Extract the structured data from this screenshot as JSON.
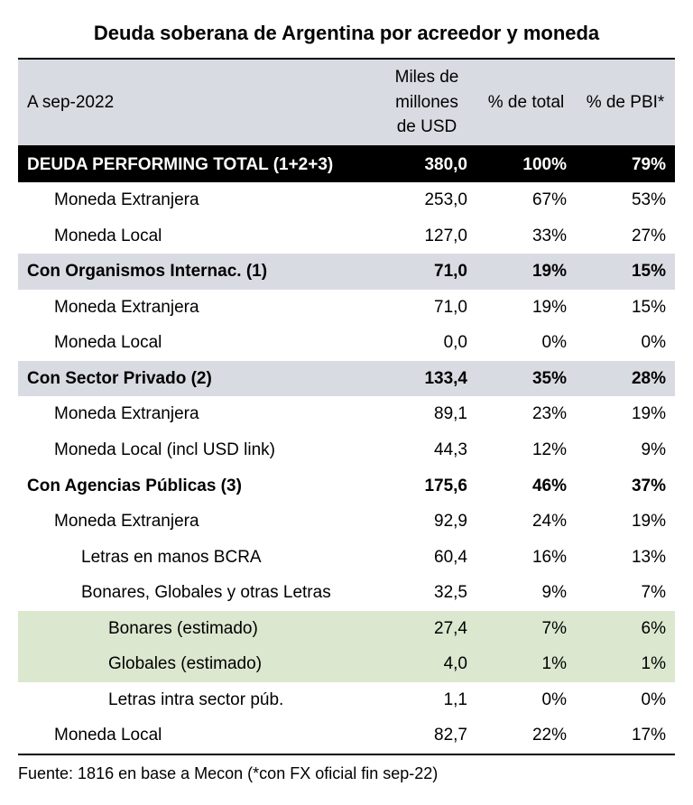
{
  "title": "Deuda soberana de Argentina por acreedor y moneda",
  "header": {
    "asof": "A sep-2022",
    "col1": "Miles de millones de USD",
    "col2": "% de total",
    "col3": "% de PBI*"
  },
  "rows": [
    {
      "style": "black",
      "indent": 0,
      "label": "DEUDA PERFORMING TOTAL (1+2+3)",
      "usd": "380,0",
      "pct_total": "100%",
      "pct_pbi": "79%"
    },
    {
      "style": "plain",
      "indent": 1,
      "label": "Moneda Extranjera",
      "usd": "253,0",
      "pct_total": "67%",
      "pct_pbi": "53%"
    },
    {
      "style": "plain",
      "indent": 1,
      "label": "Moneda Local",
      "usd": "127,0",
      "pct_total": "33%",
      "pct_pbi": "27%"
    },
    {
      "style": "section",
      "indent": 0,
      "label": "Con Organismos Internac. (1)",
      "usd": "71,0",
      "pct_total": "19%",
      "pct_pbi": "15%"
    },
    {
      "style": "plain",
      "indent": 1,
      "label": "Moneda Extranjera",
      "usd": "71,0",
      "pct_total": "19%",
      "pct_pbi": "15%"
    },
    {
      "style": "plain",
      "indent": 1,
      "label": "Moneda Local",
      "usd": "0,0",
      "pct_total": "0%",
      "pct_pbi": "0%"
    },
    {
      "style": "section",
      "indent": 0,
      "label": "Con Sector Privado (2)",
      "usd": "133,4",
      "pct_total": "35%",
      "pct_pbi": "28%"
    },
    {
      "style": "plain",
      "indent": 1,
      "label": "Moneda Extranjera",
      "usd": "89,1",
      "pct_total": "23%",
      "pct_pbi": "19%"
    },
    {
      "style": "plain",
      "indent": 1,
      "label": "Moneda Local (incl USD link)",
      "usd": "44,3",
      "pct_total": "12%",
      "pct_pbi": "9%"
    },
    {
      "style": "section-plain",
      "indent": 0,
      "label": "Con Agencias Públicas (3)",
      "usd": "175,6",
      "pct_total": "46%",
      "pct_pbi": "37%"
    },
    {
      "style": "plain",
      "indent": 1,
      "label": "Moneda Extranjera",
      "usd": "92,9",
      "pct_total": "24%",
      "pct_pbi": "19%"
    },
    {
      "style": "plain",
      "indent": 2,
      "label": "Letras en manos BCRA",
      "usd": "60,4",
      "pct_total": "16%",
      "pct_pbi": "13%"
    },
    {
      "style": "plain",
      "indent": 2,
      "label": "Bonares, Globales y otras Letras",
      "usd": "32,5",
      "pct_total": "9%",
      "pct_pbi": "7%"
    },
    {
      "style": "green",
      "indent": 3,
      "label": "Bonares (estimado)",
      "usd": "27,4",
      "pct_total": "7%",
      "pct_pbi": "6%"
    },
    {
      "style": "green",
      "indent": 3,
      "label": "Globales (estimado)",
      "usd": "4,0",
      "pct_total": "1%",
      "pct_pbi": "1%"
    },
    {
      "style": "plain",
      "indent": 3,
      "label": "Letras intra sector púb.",
      "usd": "1,1",
      "pct_total": "0%",
      "pct_pbi": "0%"
    },
    {
      "style": "plain final",
      "indent": 1,
      "label": "Moneda Local",
      "usd": "82,7",
      "pct_total": "22%",
      "pct_pbi": "17%"
    }
  ],
  "source": "Fuente: 1816 en base a Mecon (*con FX oficial fin sep-22)"
}
